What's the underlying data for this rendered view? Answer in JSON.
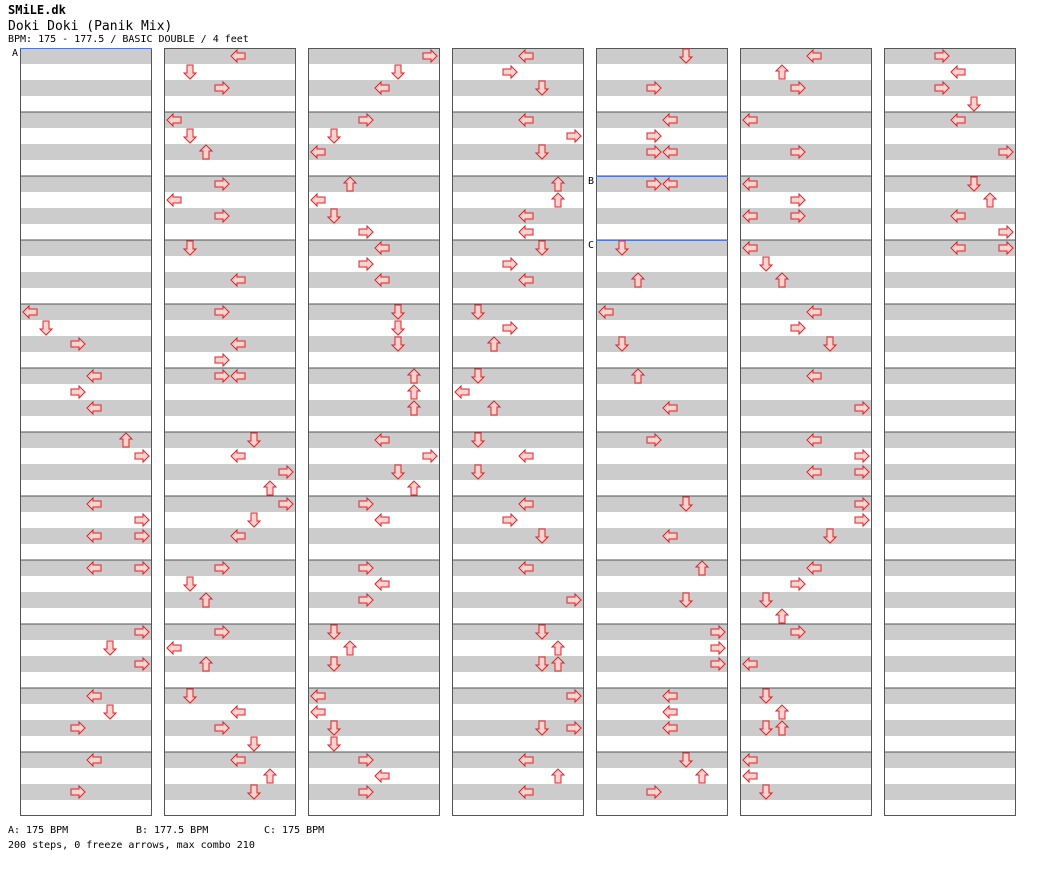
{
  "header": {
    "artist": "SMiLE.dk",
    "title": "Doki Doki (Panik Mix)",
    "meta": "BPM: 175 - 177.5 / BASIC DOUBLE / 4 feet"
  },
  "colors": {
    "arrow_fill": "#ffd2d2",
    "arrow_stroke": "#dd2222",
    "band": "#cccccc",
    "bpm_line": "#5577cc",
    "column_border": "#555555"
  },
  "bpm_changes": [
    {
      "label": "A",
      "bpm": "175 BPM",
      "column": 0,
      "measure": 0
    },
    {
      "label": "B",
      "bpm": "177.5 BPM",
      "column": 4,
      "measure": 2
    },
    {
      "label": "C",
      "bpm": "175 BPM",
      "column": 4,
      "measure": 3
    }
  ],
  "footer": {
    "legend": [
      {
        "text": "A: 175 BPM"
      },
      {
        "text": "B: 177.5 BPM"
      },
      {
        "text": "C: 175 BPM"
      }
    ],
    "summary": "200 steps, 0 freeze arrows, max combo 210"
  },
  "chart": {
    "lanes": 8,
    "lane_directions": [
      "left",
      "down",
      "up",
      "right",
      "left",
      "down",
      "up",
      "right"
    ],
    "measures_per_column": 12,
    "rows_per_measure": 4,
    "columns": [
      [
        [],
        [],
        [],
        [],
        [
          [
            0,
            0
          ],
          [
            1,
            1
          ],
          [
            3,
            2
          ]
        ],
        [
          [
            4,
            0
          ],
          [
            3,
            1
          ],
          [
            4,
            2
          ]
        ],
        [
          [
            6,
            0
          ],
          [
            7,
            1
          ]
        ],
        [
          [
            4,
            0
          ],
          [
            7,
            1
          ],
          [
            4,
            2
          ],
          [
            7,
            2
          ]
        ],
        [
          [
            4,
            0
          ],
          [
            7,
            0
          ]
        ],
        [
          [
            7,
            0
          ],
          [
            5,
            1
          ],
          [
            7,
            2
          ]
        ],
        [
          [
            4,
            0
          ],
          [
            5,
            1
          ],
          [
            3,
            2
          ]
        ],
        [
          [
            4,
            0
          ],
          [
            3,
            2
          ]
        ]
      ],
      [
        [
          [
            4,
            0
          ],
          [
            1,
            1
          ],
          [
            3,
            2
          ]
        ],
        [
          [
            0,
            0
          ],
          [
            1,
            1
          ],
          [
            2,
            2
          ]
        ],
        [
          [
            3,
            0
          ],
          [
            0,
            1
          ],
          [
            3,
            2
          ]
        ],
        [
          [
            1,
            0
          ],
          [
            4,
            2
          ]
        ],
        [
          [
            3,
            0
          ],
          [
            4,
            2
          ],
          [
            3,
            3
          ]
        ],
        [
          [
            3,
            0
          ],
          [
            4,
            0
          ]
        ],
        [
          [
            5,
            0
          ],
          [
            4,
            1
          ],
          [
            7,
            2
          ],
          [
            6,
            3
          ]
        ],
        [
          [
            7,
            0
          ],
          [
            5,
            1
          ],
          [
            4,
            2
          ]
        ],
        [
          [
            3,
            0
          ],
          [
            1,
            1
          ],
          [
            2,
            2
          ]
        ],
        [
          [
            3,
            0
          ],
          [
            0,
            1
          ],
          [
            2,
            2
          ]
        ],
        [
          [
            1,
            0
          ],
          [
            4,
            1
          ],
          [
            3,
            2
          ],
          [
            5,
            3
          ]
        ],
        [
          [
            4,
            0
          ],
          [
            6,
            1
          ],
          [
            5,
            2
          ]
        ]
      ],
      [
        [
          [
            7,
            0
          ],
          [
            5,
            1
          ],
          [
            4,
            2
          ]
        ],
        [
          [
            3,
            0
          ],
          [
            1,
            1
          ],
          [
            0,
            2
          ]
        ],
        [
          [
            2,
            0
          ],
          [
            0,
            1
          ],
          [
            1,
            2
          ],
          [
            3,
            3
          ]
        ],
        [
          [
            4,
            0
          ],
          [
            3,
            1
          ],
          [
            4,
            2
          ]
        ],
        [
          [
            5,
            0
          ],
          [
            5,
            1
          ],
          [
            5,
            2
          ]
        ],
        [
          [
            6,
            0
          ],
          [
            6,
            1
          ],
          [
            6,
            2
          ]
        ],
        [
          [
            4,
            0
          ],
          [
            7,
            1
          ],
          [
            5,
            2
          ],
          [
            6,
            3
          ]
        ],
        [
          [
            3,
            0
          ],
          [
            4,
            1
          ]
        ],
        [
          [
            3,
            0
          ],
          [
            4,
            1
          ],
          [
            3,
            2
          ]
        ],
        [
          [
            1,
            0
          ],
          [
            2,
            1
          ],
          [
            1,
            2
          ]
        ],
        [
          [
            0,
            0
          ],
          [
            0,
            1
          ],
          [
            1,
            2
          ],
          [
            1,
            3
          ]
        ],
        [
          [
            3,
            0
          ],
          [
            4,
            1
          ],
          [
            3,
            2
          ]
        ]
      ],
      [
        [
          [
            4,
            0
          ],
          [
            3,
            1
          ],
          [
            5,
            2
          ]
        ],
        [
          [
            4,
            0
          ],
          [
            7,
            1
          ],
          [
            5,
            2
          ]
        ],
        [
          [
            6,
            0
          ],
          [
            6,
            1
          ],
          [
            4,
            2
          ],
          [
            4,
            3
          ]
        ],
        [
          [
            5,
            0
          ],
          [
            3,
            1
          ],
          [
            4,
            2
          ]
        ],
        [
          [
            1,
            0
          ],
          [
            3,
            1
          ],
          [
            2,
            2
          ]
        ],
        [
          [
            1,
            0
          ],
          [
            0,
            1
          ],
          [
            2,
            2
          ]
        ],
        [
          [
            1,
            0
          ],
          [
            4,
            1
          ],
          [
            1,
            2
          ]
        ],
        [
          [
            4,
            0
          ],
          [
            3,
            1
          ],
          [
            5,
            2
          ]
        ],
        [
          [
            4,
            0
          ],
          [
            7,
            2
          ]
        ],
        [
          [
            5,
            0
          ],
          [
            6,
            1
          ],
          [
            5,
            2
          ],
          [
            6,
            2
          ]
        ],
        [
          [
            7,
            0
          ],
          [
            5,
            2
          ],
          [
            7,
            2
          ]
        ],
        [
          [
            4,
            0
          ],
          [
            6,
            1
          ],
          [
            4,
            2
          ]
        ]
      ],
      [
        [
          [
            5,
            0
          ],
          [
            3,
            2
          ]
        ],
        [
          [
            4,
            0
          ],
          [
            3,
            1
          ],
          [
            3,
            2
          ],
          [
            4,
            2
          ]
        ],
        [
          [
            3,
            0
          ],
          [
            4,
            0
          ]
        ],
        [
          [
            1,
            0
          ],
          [
            2,
            2
          ]
        ],
        [
          [
            0,
            0
          ],
          [
            1,
            2
          ]
        ],
        [
          [
            2,
            0
          ],
          [
            4,
            2
          ]
        ],
        [
          [
            3,
            0
          ]
        ],
        [
          [
            5,
            0
          ],
          [
            4,
            2
          ]
        ],
        [
          [
            6,
            0
          ],
          [
            5,
            2
          ]
        ],
        [
          [
            7,
            0
          ],
          [
            7,
            1
          ],
          [
            7,
            2
          ]
        ],
        [
          [
            4,
            0
          ],
          [
            4,
            1
          ],
          [
            4,
            2
          ]
        ],
        [
          [
            5,
            0
          ],
          [
            6,
            1
          ],
          [
            3,
            2
          ]
        ]
      ],
      [
        [
          [
            4,
            0
          ],
          [
            2,
            1
          ],
          [
            3,
            2
          ]
        ],
        [
          [
            0,
            0
          ],
          [
            3,
            2
          ]
        ],
        [
          [
            0,
            0
          ],
          [
            3,
            1
          ],
          [
            0,
            2
          ],
          [
            3,
            2
          ]
        ],
        [
          [
            0,
            0
          ],
          [
            1,
            1
          ],
          [
            2,
            2
          ]
        ],
        [
          [
            4,
            0
          ],
          [
            3,
            1
          ],
          [
            5,
            2
          ]
        ],
        [
          [
            4,
            0
          ],
          [
            7,
            2
          ]
        ],
        [
          [
            4,
            0
          ],
          [
            7,
            1
          ],
          [
            4,
            2
          ],
          [
            7,
            2
          ]
        ],
        [
          [
            7,
            0
          ],
          [
            7,
            1
          ],
          [
            5,
            2
          ]
        ],
        [
          [
            4,
            0
          ],
          [
            3,
            1
          ],
          [
            1,
            2
          ],
          [
            2,
            3
          ]
        ],
        [
          [
            3,
            0
          ],
          [
            0,
            2
          ]
        ],
        [
          [
            1,
            0
          ],
          [
            2,
            1
          ],
          [
            1,
            2
          ],
          [
            2,
            2
          ]
        ],
        [
          [
            0,
            0
          ],
          [
            0,
            1
          ],
          [
            1,
            2
          ]
        ]
      ],
      [
        [
          [
            3,
            0
          ],
          [
            4,
            1
          ],
          [
            3,
            2
          ],
          [
            5,
            3
          ]
        ],
        [
          [
            4,
            0
          ],
          [
            7,
            2
          ]
        ],
        [
          [
            5,
            0
          ],
          [
            6,
            1
          ],
          [
            4,
            2
          ],
          [
            7,
            3
          ]
        ],
        [
          [
            4,
            0
          ],
          [
            7,
            0
          ]
        ],
        [],
        [],
        [],
        [],
        [],
        [],
        [],
        []
      ]
    ]
  }
}
